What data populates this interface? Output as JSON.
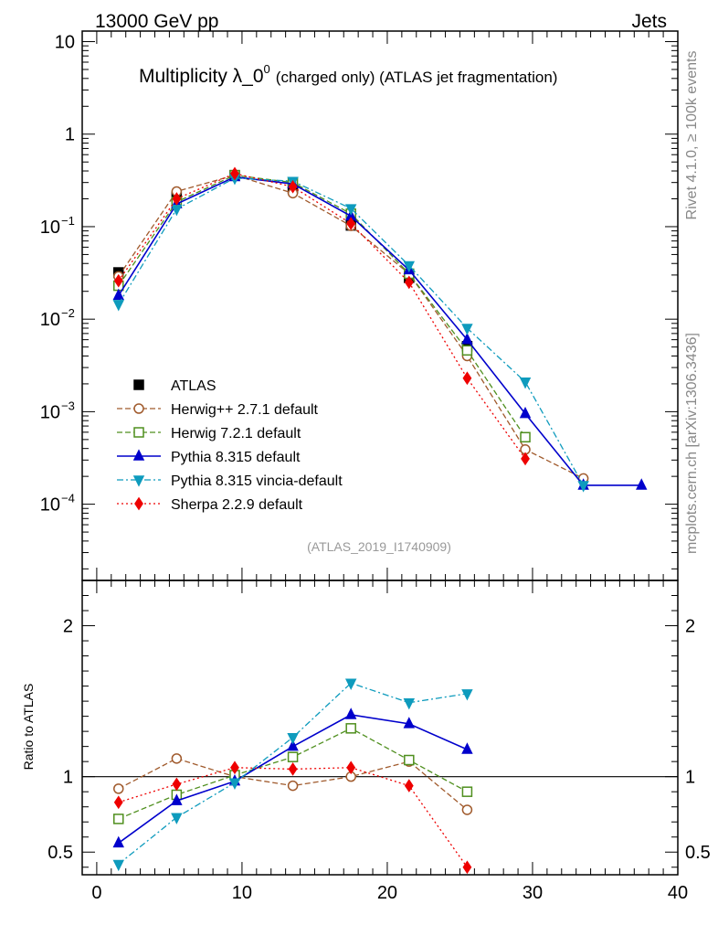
{
  "header": {
    "left": "13000 GeV pp",
    "right": "Jets"
  },
  "side_labels": {
    "top": "Rivet 4.1.0, ≥ 100k events",
    "bottom": "mcplots.cern.ch [arXiv:1306.3436]"
  },
  "chart_data": {
    "type": "scatter",
    "title": "Multiplicity λ_0⁰ (charged only) (ATLAS jet fragmentation)",
    "title_main": "Multiplicity λ_0",
    "title_sup": "0",
    "title_rest": "(charged only) (ATLAS jet fragmentation)",
    "analysis_tag": "(ATLAS_2019_I1740909)",
    "xlim": [
      -1,
      40
    ],
    "x_ticks": [
      "0",
      "10",
      "20",
      "30",
      "40"
    ],
    "main_panel": {
      "yscale": "log",
      "ylim": [
        1.5e-05,
        13
      ],
      "y_ticks": [
        {
          "value": 10,
          "base": "10",
          "exp": ""
        },
        {
          "value": 1,
          "base": "1",
          "exp": ""
        },
        {
          "value": 0.1,
          "base": "10",
          "exp": "−1"
        },
        {
          "value": 0.01,
          "base": "10",
          "exp": "−2"
        },
        {
          "value": 0.001,
          "base": "10",
          "exp": "−3"
        },
        {
          "value": 0.0001,
          "base": "10",
          "exp": "−4"
        }
      ]
    },
    "ratio_panel": {
      "ylabel": "Ratio to ATLAS",
      "ylim": [
        0.35,
        2.3
      ],
      "y_ticks": [
        "0.5",
        "1",
        "2"
      ],
      "reference": 1
    },
    "legend": {
      "position": "center-left"
    },
    "series": [
      {
        "name": "ATLAS",
        "label": "ATLAS",
        "color": "#000000",
        "marker": "square-filled",
        "line": "none",
        "x": [
          1.5,
          5.5,
          9.5,
          13.5,
          17.5,
          21.5,
          25.5
        ],
        "values": [
          0.032,
          0.21,
          0.36,
          0.26,
          0.103,
          0.028,
          0.0051
        ],
        "ratio": [
          1,
          1,
          1,
          1,
          1,
          1,
          1
        ]
      },
      {
        "name": "Herwig++ 2.7.1 default",
        "label": "Herwig++ 2.7.1 default",
        "color": "#a05a2c",
        "marker": "circle-open",
        "line": "dashed",
        "x": [
          1.5,
          5.5,
          9.5,
          13.5,
          17.5,
          21.5,
          25.5,
          29.5,
          33.5
        ],
        "values": [
          0.029,
          0.24,
          0.36,
          0.23,
          0.102,
          0.031,
          0.004,
          0.00039,
          0.00019
        ],
        "ratio": [
          0.92,
          1.12,
          1.0,
          0.94,
          1.0,
          1.1,
          0.78
        ]
      },
      {
        "name": "Herwig 7.2.1 default",
        "label": "Herwig 7.2.1 default",
        "color": "#4f8f1e",
        "marker": "square-open",
        "line": "dashed",
        "x": [
          1.5,
          5.5,
          9.5,
          13.5,
          17.5,
          21.5,
          25.5,
          29.5
        ],
        "values": [
          0.023,
          0.185,
          0.36,
          0.3,
          0.138,
          0.031,
          0.0046,
          0.00053
        ],
        "ratio": [
          0.72,
          0.88,
          1.01,
          1.13,
          1.32,
          1.11,
          0.9
        ]
      },
      {
        "name": "Pythia 8.315 default",
        "label": "Pythia 8.315 default",
        "color": "#0000cc",
        "marker": "triangle-up-filled",
        "line": "solid",
        "x": [
          1.5,
          5.5,
          9.5,
          13.5,
          17.5,
          21.5,
          25.5,
          29.5,
          33.5,
          37.5
        ],
        "values": [
          0.018,
          0.176,
          0.345,
          0.29,
          0.13,
          0.034,
          0.006,
          0.00095,
          0.00016,
          0.00016
        ],
        "ratio": [
          0.56,
          0.84,
          0.97,
          1.2,
          1.41,
          1.35,
          1.18
        ]
      },
      {
        "name": "Pythia 8.315 vincia-default",
        "label": "Pythia 8.315 vincia-default",
        "color": "#0e9bbd",
        "marker": "triangle-down-filled",
        "line": "dashdot",
        "x": [
          1.5,
          5.5,
          9.5,
          13.5,
          17.5,
          21.5,
          25.5,
          29.5,
          33.5
        ],
        "values": [
          0.0145,
          0.155,
          0.335,
          0.31,
          0.157,
          0.038,
          0.008,
          0.0021,
          0.00016
        ],
        "ratio": [
          0.42,
          0.73,
          0.96,
          1.26,
          1.62,
          1.49,
          1.55
        ]
      },
      {
        "name": "Sherpa 2.2.9 default",
        "label": "Sherpa 2.2.9 default",
        "color": "#ee0000",
        "marker": "diamond-filled",
        "line": "dotted",
        "x": [
          1.5,
          5.5,
          9.5,
          13.5,
          17.5,
          21.5,
          25.5,
          29.5
        ],
        "values": [
          0.026,
          0.2,
          0.375,
          0.27,
          0.108,
          0.025,
          0.0023,
          0.00031
        ],
        "ratio": [
          0.83,
          0.95,
          1.06,
          1.05,
          1.06,
          0.94,
          0.4
        ]
      }
    ]
  }
}
